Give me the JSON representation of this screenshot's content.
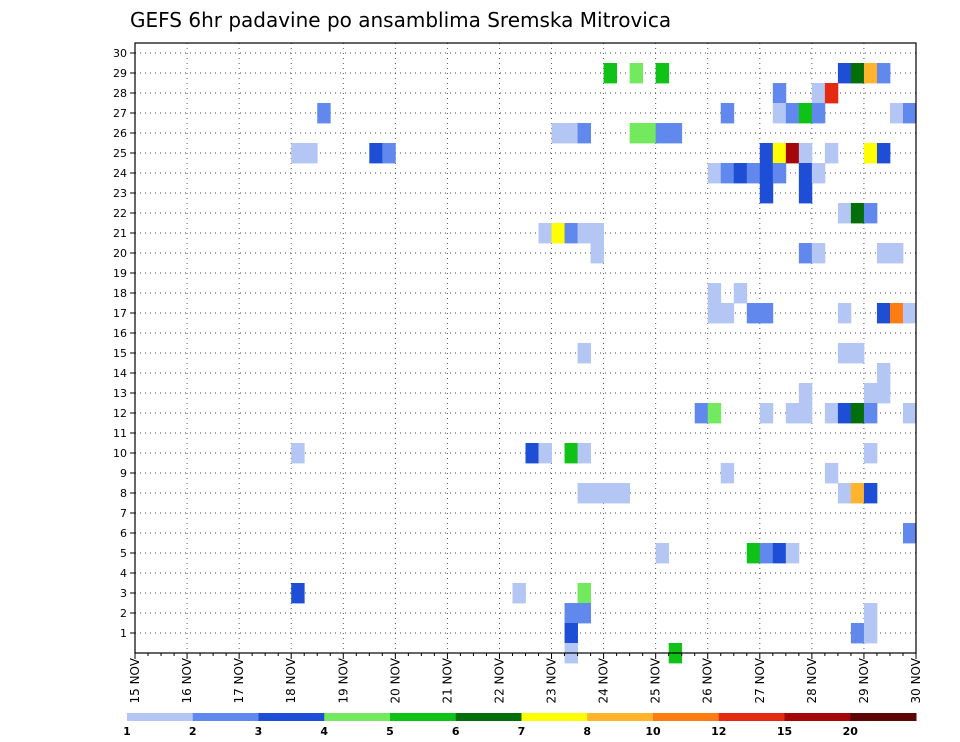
{
  "chart_data": {
    "type": "heatmap",
    "title": "GEFS 6hr padavine po ansamblima Sremska Mitrovica",
    "x_tick_labels": [
      "15 NOV",
      "16 NOV",
      "17 NOV",
      "18 NOV",
      "19 NOV",
      "20 NOV",
      "21 NOV",
      "22 NOV",
      "23 NOV",
      "24 NOV",
      "25 NOV",
      "26 NOV",
      "27 NOV",
      "28 NOV",
      "29 NOV",
      "30 NOV"
    ],
    "x_range_days": [
      15,
      30
    ],
    "y_range": [
      0,
      30
    ],
    "y_ticks": [
      1,
      2,
      3,
      4,
      5,
      6,
      7,
      8,
      9,
      10,
      11,
      12,
      13,
      14,
      15,
      16,
      17,
      18,
      19,
      20,
      21,
      22,
      23,
      24,
      25,
      26,
      27,
      28,
      29,
      30
    ],
    "step_hours": 6,
    "grid": true,
    "legend_position": "bottom",
    "legend": {
      "labels": [
        "1",
        "2",
        "3",
        "4",
        "5",
        "6",
        "7",
        "8",
        "10",
        "12",
        "15",
        "20"
      ],
      "colors": [
        "#b4c6f3",
        "#6088ed",
        "#1e4ed6",
        "#73ea5d",
        "#10c118",
        "#036e0a",
        "#ffff00",
        "#ffb42c",
        "#fe7d12",
        "#e52a12",
        "#a40707",
        "#5e0606"
      ]
    },
    "cells_note": "each cell: [member (y), day index of 6-hour step from 15 NOV 00h (x, in steps), level index into legend colors]",
    "cells": [
      [
        29,
        36,
        4
      ],
      [
        29,
        38,
        3
      ],
      [
        29,
        40,
        4
      ],
      [
        29,
        54,
        2
      ],
      [
        29,
        55,
        5
      ],
      [
        29,
        56,
        7
      ],
      [
        29,
        57,
        1
      ],
      [
        28,
        49,
        1
      ],
      [
        28,
        52,
        0
      ],
      [
        28,
        53,
        9
      ],
      [
        27,
        14,
        1
      ],
      [
        27,
        45,
        1
      ],
      [
        27,
        49,
        0
      ],
      [
        27,
        50,
        1
      ],
      [
        27,
        51,
        4
      ],
      [
        27,
        52,
        1
      ],
      [
        27,
        58,
        0
      ],
      [
        27,
        59,
        1
      ],
      [
        26,
        32,
        0
      ],
      [
        26,
        33,
        0
      ],
      [
        26,
        34,
        1
      ],
      [
        26,
        38,
        3
      ],
      [
        26,
        39,
        3
      ],
      [
        26,
        40,
        1
      ],
      [
        26,
        41,
        1
      ],
      [
        25,
        12,
        0
      ],
      [
        25,
        13,
        0
      ],
      [
        25,
        18,
        2
      ],
      [
        25,
        19,
        1
      ],
      [
        25,
        48,
        2
      ],
      [
        25,
        49,
        6
      ],
      [
        25,
        50,
        10
      ],
      [
        25,
        51,
        0
      ],
      [
        25,
        53,
        0
      ],
      [
        25,
        56,
        6
      ],
      [
        25,
        57,
        2
      ],
      [
        24,
        44,
        0
      ],
      [
        24,
        45,
        1
      ],
      [
        24,
        46,
        2
      ],
      [
        24,
        47,
        1
      ],
      [
        24,
        48,
        2
      ],
      [
        24,
        49,
        1
      ],
      [
        24,
        51,
        2
      ],
      [
        24,
        52,
        0
      ],
      [
        23,
        48,
        2
      ],
      [
        23,
        51,
        2
      ],
      [
        22,
        54,
        0
      ],
      [
        22,
        55,
        5
      ],
      [
        22,
        56,
        1
      ],
      [
        21,
        31,
        0
      ],
      [
        21,
        32,
        6
      ],
      [
        21,
        33,
        1
      ],
      [
        21,
        34,
        0
      ],
      [
        21,
        35,
        0
      ],
      [
        20,
        35,
        0
      ],
      [
        20,
        51,
        1
      ],
      [
        20,
        52,
        0
      ],
      [
        20,
        57,
        0
      ],
      [
        20,
        58,
        0
      ],
      [
        18,
        44,
        0
      ],
      [
        18,
        46,
        0
      ],
      [
        17,
        44,
        0
      ],
      [
        17,
        45,
        0
      ],
      [
        17,
        47,
        1
      ],
      [
        17,
        48,
        1
      ],
      [
        17,
        54,
        0
      ],
      [
        17,
        57,
        2
      ],
      [
        17,
        58,
        8
      ],
      [
        17,
        59,
        0
      ],
      [
        15,
        34,
        0
      ],
      [
        15,
        54,
        0
      ],
      [
        15,
        55,
        0
      ],
      [
        14,
        57,
        0
      ],
      [
        13,
        51,
        0
      ],
      [
        13,
        56,
        0
      ],
      [
        13,
        57,
        0
      ],
      [
        12,
        43,
        1
      ],
      [
        12,
        44,
        3
      ],
      [
        12,
        48,
        0
      ],
      [
        12,
        50,
        0
      ],
      [
        12,
        51,
        0
      ],
      [
        12,
        53,
        0
      ],
      [
        12,
        54,
        2
      ],
      [
        12,
        55,
        5
      ],
      [
        12,
        56,
        1
      ],
      [
        12,
        59,
        0
      ],
      [
        10,
        12,
        0
      ],
      [
        10,
        30,
        2
      ],
      [
        10,
        31,
        0
      ],
      [
        10,
        33,
        4
      ],
      [
        10,
        34,
        0
      ],
      [
        10,
        56,
        0
      ],
      [
        9,
        45,
        0
      ],
      [
        9,
        53,
        0
      ],
      [
        8,
        34,
        0
      ],
      [
        8,
        35,
        0
      ],
      [
        8,
        36,
        0
      ],
      [
        8,
        37,
        0
      ],
      [
        8,
        54,
        0
      ],
      [
        8,
        55,
        7
      ],
      [
        8,
        56,
        2
      ],
      [
        6,
        59,
        1
      ],
      [
        5,
        40,
        0
      ],
      [
        5,
        47,
        4
      ],
      [
        5,
        48,
        1
      ],
      [
        5,
        49,
        2
      ],
      [
        5,
        50,
        0
      ],
      [
        3,
        12,
        2
      ],
      [
        3,
        29,
        0
      ],
      [
        3,
        34,
        3
      ],
      [
        2,
        33,
        1
      ],
      [
        2,
        34,
        1
      ],
      [
        2,
        56,
        0
      ],
      [
        1,
        33,
        2
      ],
      [
        1,
        55,
        1
      ],
      [
        1,
        56,
        0
      ],
      [
        0,
        33,
        0
      ],
      [
        0,
        41,
        4
      ]
    ]
  }
}
